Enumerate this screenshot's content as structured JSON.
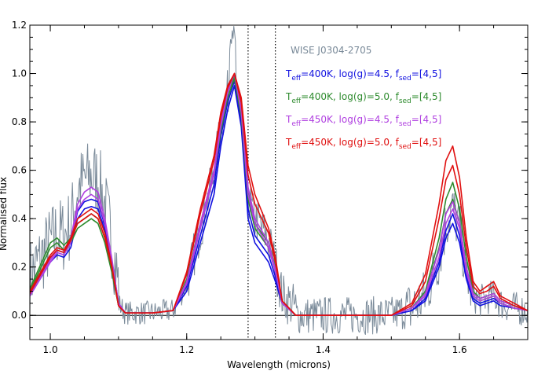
{
  "chart_data": {
    "type": "line",
    "xlabel": "Wavelength (microns)",
    "ylabel": "Normalised flux",
    "xlim": [
      0.97,
      1.7
    ],
    "ylim": [
      -0.1,
      1.2
    ],
    "x_ticks": [
      1.0,
      1.2,
      1.4,
      1.6
    ],
    "y_ticks": [
      0.0,
      0.2,
      0.4,
      0.6,
      0.8,
      1.0,
      1.2
    ],
    "reference_lines": [
      {
        "type": "horizontal",
        "y": 0.0,
        "style": "solid"
      },
      {
        "type": "vertical",
        "x": 1.29,
        "style": "dotted"
      },
      {
        "type": "vertical",
        "x": 1.33,
        "style": "dotted"
      }
    ],
    "observed": {
      "name": "WISE J0304-2705",
      "color": "#7a8a99"
    },
    "legend": [
      {
        "main": "T",
        "sub1": "eff",
        "mid": "=400K, log(g)=4.5, f",
        "sub2": "sed",
        "end": "=[4,5]",
        "color": "#1010e0"
      },
      {
        "main": "T",
        "sub1": "eff",
        "mid": "=400K, log(g)=5.0, f",
        "sub2": "sed",
        "end": "=[4,5]",
        "color": "#2e8b2e"
      },
      {
        "main": "T",
        "sub1": "eff",
        "mid": "=450K, log(g)=4.5, f",
        "sub2": "sed",
        "end": "=[4,5]",
        "color": "#b040e0"
      },
      {
        "main": "T",
        "sub1": "eff",
        "mid": "=450K, log(g)=5.0, f",
        "sub2": "sed",
        "end": "=[4,5]",
        "color": "#e01010"
      }
    ],
    "series": [
      {
        "color": "#1010e0",
        "x": [
          0.97,
          1.0,
          1.01,
          1.02,
          1.03,
          1.04,
          1.05,
          1.06,
          1.07,
          1.08,
          1.09,
          1.1,
          1.11,
          1.15,
          1.18,
          1.2,
          1.22,
          1.24,
          1.25,
          1.26,
          1.27,
          1.28,
          1.29,
          1.3,
          1.31,
          1.32,
          1.33,
          1.34,
          1.36,
          1.45,
          1.5,
          1.53,
          1.55,
          1.57,
          1.58,
          1.59,
          1.6,
          1.61,
          1.62,
          1.63,
          1.64,
          1.65,
          1.66,
          1.68,
          1.7
        ],
        "y": [
          0.08,
          0.22,
          0.25,
          0.24,
          0.28,
          0.4,
          0.44,
          0.45,
          0.44,
          0.35,
          0.22,
          0.05,
          0.01,
          0.01,
          0.02,
          0.1,
          0.3,
          0.5,
          0.7,
          0.85,
          0.95,
          0.78,
          0.4,
          0.3,
          0.26,
          0.22,
          0.14,
          0.05,
          0.0,
          0.0,
          0.0,
          0.02,
          0.06,
          0.2,
          0.32,
          0.38,
          0.3,
          0.15,
          0.06,
          0.04,
          0.05,
          0.06,
          0.04,
          0.03,
          0.02
        ]
      },
      {
        "color": "#1010e0",
        "x": [
          0.97,
          1.0,
          1.01,
          1.02,
          1.03,
          1.04,
          1.05,
          1.06,
          1.07,
          1.08,
          1.09,
          1.1,
          1.11,
          1.15,
          1.18,
          1.2,
          1.22,
          1.24,
          1.25,
          1.26,
          1.27,
          1.28,
          1.29,
          1.3,
          1.31,
          1.32,
          1.33,
          1.34,
          1.36,
          1.45,
          1.5,
          1.53,
          1.55,
          1.57,
          1.58,
          1.59,
          1.6,
          1.61,
          1.62,
          1.63,
          1.64,
          1.65,
          1.66,
          1.68,
          1.7
        ],
        "y": [
          0.09,
          0.24,
          0.27,
          0.26,
          0.3,
          0.43,
          0.47,
          0.48,
          0.47,
          0.37,
          0.23,
          0.05,
          0.01,
          0.01,
          0.02,
          0.12,
          0.33,
          0.54,
          0.74,
          0.88,
          0.97,
          0.8,
          0.44,
          0.33,
          0.29,
          0.25,
          0.16,
          0.05,
          0.0,
          0.0,
          0.0,
          0.02,
          0.07,
          0.22,
          0.35,
          0.42,
          0.33,
          0.17,
          0.07,
          0.05,
          0.06,
          0.07,
          0.05,
          0.03,
          0.02
        ]
      },
      {
        "color": "#2e8b2e",
        "x": [
          0.97,
          1.0,
          1.01,
          1.02,
          1.03,
          1.04,
          1.05,
          1.06,
          1.07,
          1.08,
          1.09,
          1.1,
          1.11,
          1.15,
          1.18,
          1.2,
          1.22,
          1.24,
          1.25,
          1.26,
          1.27,
          1.28,
          1.29,
          1.3,
          1.31,
          1.32,
          1.33,
          1.34,
          1.36,
          1.45,
          1.5,
          1.53,
          1.55,
          1.57,
          1.58,
          1.59,
          1.6,
          1.61,
          1.62,
          1.63,
          1.64,
          1.65,
          1.66,
          1.68,
          1.7
        ],
        "y": [
          0.1,
          0.28,
          0.3,
          0.27,
          0.3,
          0.36,
          0.38,
          0.4,
          0.38,
          0.3,
          0.18,
          0.04,
          0.01,
          0.01,
          0.02,
          0.14,
          0.36,
          0.58,
          0.76,
          0.9,
          0.98,
          0.82,
          0.48,
          0.36,
          0.32,
          0.28,
          0.18,
          0.05,
          0.0,
          0.0,
          0.0,
          0.03,
          0.09,
          0.28,
          0.42,
          0.48,
          0.38,
          0.2,
          0.08,
          0.06,
          0.07,
          0.08,
          0.05,
          0.03,
          0.02
        ]
      },
      {
        "color": "#2e8b2e",
        "x": [
          0.97,
          1.0,
          1.01,
          1.02,
          1.03,
          1.04,
          1.05,
          1.06,
          1.07,
          1.08,
          1.09,
          1.1,
          1.11,
          1.15,
          1.18,
          1.2,
          1.22,
          1.24,
          1.25,
          1.26,
          1.27,
          1.28,
          1.29,
          1.3,
          1.31,
          1.32,
          1.33,
          1.34,
          1.36,
          1.45,
          1.5,
          1.53,
          1.55,
          1.57,
          1.58,
          1.59,
          1.6,
          1.61,
          1.62,
          1.63,
          1.64,
          1.65,
          1.66,
          1.68,
          1.7
        ],
        "y": [
          0.11,
          0.3,
          0.32,
          0.29,
          0.32,
          0.38,
          0.4,
          0.42,
          0.4,
          0.32,
          0.19,
          0.04,
          0.01,
          0.01,
          0.02,
          0.15,
          0.38,
          0.6,
          0.78,
          0.92,
          0.99,
          0.84,
          0.52,
          0.38,
          0.34,
          0.3,
          0.2,
          0.06,
          0.0,
          0.0,
          0.0,
          0.03,
          0.1,
          0.32,
          0.48,
          0.55,
          0.44,
          0.24,
          0.1,
          0.07,
          0.08,
          0.09,
          0.06,
          0.04,
          0.02
        ]
      },
      {
        "color": "#b040e0",
        "x": [
          0.97,
          1.0,
          1.01,
          1.02,
          1.03,
          1.04,
          1.05,
          1.06,
          1.07,
          1.08,
          1.09,
          1.1,
          1.11,
          1.15,
          1.18,
          1.2,
          1.22,
          1.24,
          1.25,
          1.26,
          1.27,
          1.28,
          1.29,
          1.3,
          1.31,
          1.32,
          1.33,
          1.34,
          1.36,
          1.45,
          1.5,
          1.53,
          1.55,
          1.57,
          1.58,
          1.59,
          1.6,
          1.61,
          1.62,
          1.63,
          1.64,
          1.65,
          1.66,
          1.68,
          1.7
        ],
        "y": [
          0.08,
          0.22,
          0.26,
          0.25,
          0.3,
          0.44,
          0.48,
          0.5,
          0.48,
          0.38,
          0.23,
          0.05,
          0.01,
          0.01,
          0.02,
          0.13,
          0.36,
          0.58,
          0.78,
          0.92,
          1.0,
          0.84,
          0.5,
          0.38,
          0.33,
          0.28,
          0.18,
          0.05,
          0.0,
          0.0,
          0.0,
          0.03,
          0.08,
          0.24,
          0.38,
          0.44,
          0.36,
          0.18,
          0.08,
          0.06,
          0.07,
          0.08,
          0.05,
          0.03,
          0.02
        ]
      },
      {
        "color": "#b040e0",
        "x": [
          0.97,
          1.0,
          1.01,
          1.02,
          1.03,
          1.04,
          1.05,
          1.06,
          1.07,
          1.08,
          1.09,
          1.1,
          1.11,
          1.15,
          1.18,
          1.2,
          1.22,
          1.24,
          1.25,
          1.26,
          1.27,
          1.28,
          1.29,
          1.3,
          1.31,
          1.32,
          1.33,
          1.34,
          1.36,
          1.45,
          1.5,
          1.53,
          1.55,
          1.57,
          1.58,
          1.59,
          1.6,
          1.61,
          1.62,
          1.63,
          1.64,
          1.65,
          1.66,
          1.68,
          1.7
        ],
        "y": [
          0.08,
          0.23,
          0.27,
          0.26,
          0.32,
          0.46,
          0.51,
          0.53,
          0.51,
          0.4,
          0.24,
          0.05,
          0.01,
          0.01,
          0.02,
          0.14,
          0.38,
          0.6,
          0.8,
          0.93,
          1.0,
          0.85,
          0.53,
          0.4,
          0.35,
          0.3,
          0.19,
          0.05,
          0.0,
          0.0,
          0.0,
          0.03,
          0.09,
          0.27,
          0.42,
          0.47,
          0.38,
          0.2,
          0.09,
          0.07,
          0.08,
          0.09,
          0.06,
          0.04,
          0.02
        ]
      },
      {
        "color": "#e01010",
        "x": [
          0.97,
          1.0,
          1.01,
          1.02,
          1.03,
          1.04,
          1.05,
          1.06,
          1.07,
          1.08,
          1.09,
          1.1,
          1.11,
          1.15,
          1.18,
          1.2,
          1.22,
          1.24,
          1.25,
          1.26,
          1.27,
          1.28,
          1.29,
          1.3,
          1.31,
          1.32,
          1.33,
          1.34,
          1.36,
          1.45,
          1.5,
          1.53,
          1.55,
          1.57,
          1.58,
          1.59,
          1.6,
          1.61,
          1.62,
          1.63,
          1.64,
          1.65,
          1.66,
          1.68,
          1.7
        ],
        "y": [
          0.09,
          0.24,
          0.27,
          0.26,
          0.31,
          0.38,
          0.4,
          0.42,
          0.4,
          0.32,
          0.2,
          0.04,
          0.01,
          0.01,
          0.02,
          0.17,
          0.42,
          0.64,
          0.82,
          0.94,
          1.0,
          0.88,
          0.58,
          0.46,
          0.4,
          0.34,
          0.22,
          0.06,
          0.0,
          0.0,
          0.0,
          0.04,
          0.14,
          0.4,
          0.56,
          0.62,
          0.5,
          0.28,
          0.12,
          0.09,
          0.1,
          0.12,
          0.07,
          0.04,
          0.02
        ]
      },
      {
        "color": "#e01010",
        "x": [
          0.97,
          1.0,
          1.01,
          1.02,
          1.03,
          1.04,
          1.05,
          1.06,
          1.07,
          1.08,
          1.09,
          1.1,
          1.11,
          1.15,
          1.18,
          1.2,
          1.22,
          1.24,
          1.25,
          1.26,
          1.27,
          1.28,
          1.29,
          1.3,
          1.31,
          1.32,
          1.33,
          1.34,
          1.36,
          1.45,
          1.5,
          1.53,
          1.55,
          1.57,
          1.58,
          1.59,
          1.6,
          1.61,
          1.62,
          1.63,
          1.64,
          1.65,
          1.66,
          1.68,
          1.7
        ],
        "y": [
          0.1,
          0.25,
          0.28,
          0.27,
          0.32,
          0.4,
          0.42,
          0.44,
          0.42,
          0.34,
          0.21,
          0.04,
          0.01,
          0.01,
          0.02,
          0.18,
          0.44,
          0.66,
          0.84,
          0.95,
          1.0,
          0.9,
          0.62,
          0.5,
          0.43,
          0.36,
          0.24,
          0.06,
          0.0,
          0.0,
          0.0,
          0.05,
          0.17,
          0.46,
          0.64,
          0.7,
          0.57,
          0.32,
          0.14,
          0.1,
          0.12,
          0.14,
          0.08,
          0.05,
          0.02
        ]
      }
    ]
  }
}
